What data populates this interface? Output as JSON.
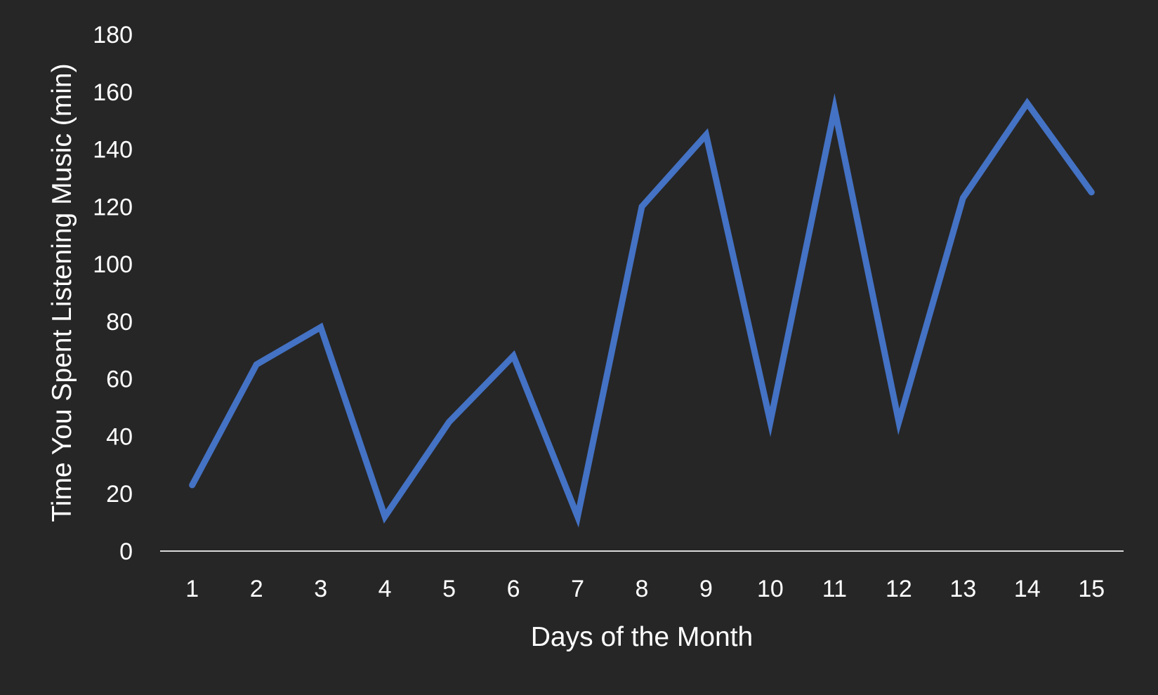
{
  "chart_data": {
    "type": "line",
    "title": "",
    "xlabel": "Days of the Month",
    "ylabel": "Time You Spent Listening Music (min)",
    "categories": [
      "1",
      "2",
      "3",
      "4",
      "5",
      "6",
      "7",
      "8",
      "9",
      "10",
      "11",
      "12",
      "13",
      "14",
      "15"
    ],
    "series": [
      {
        "values": [
          23,
          65,
          78,
          12,
          45,
          68,
          12,
          120,
          145,
          45,
          154,
          45,
          123,
          156,
          125
        ],
        "color": "#4472C4"
      }
    ],
    "ylim": [
      0,
      180
    ],
    "yticks": [
      0,
      20,
      40,
      60,
      80,
      100,
      120,
      140,
      160,
      180
    ],
    "grid": false,
    "legend": "none",
    "colors": {
      "background": "#262626",
      "axis": "#d9d9d9",
      "text": "#ffffff"
    }
  }
}
